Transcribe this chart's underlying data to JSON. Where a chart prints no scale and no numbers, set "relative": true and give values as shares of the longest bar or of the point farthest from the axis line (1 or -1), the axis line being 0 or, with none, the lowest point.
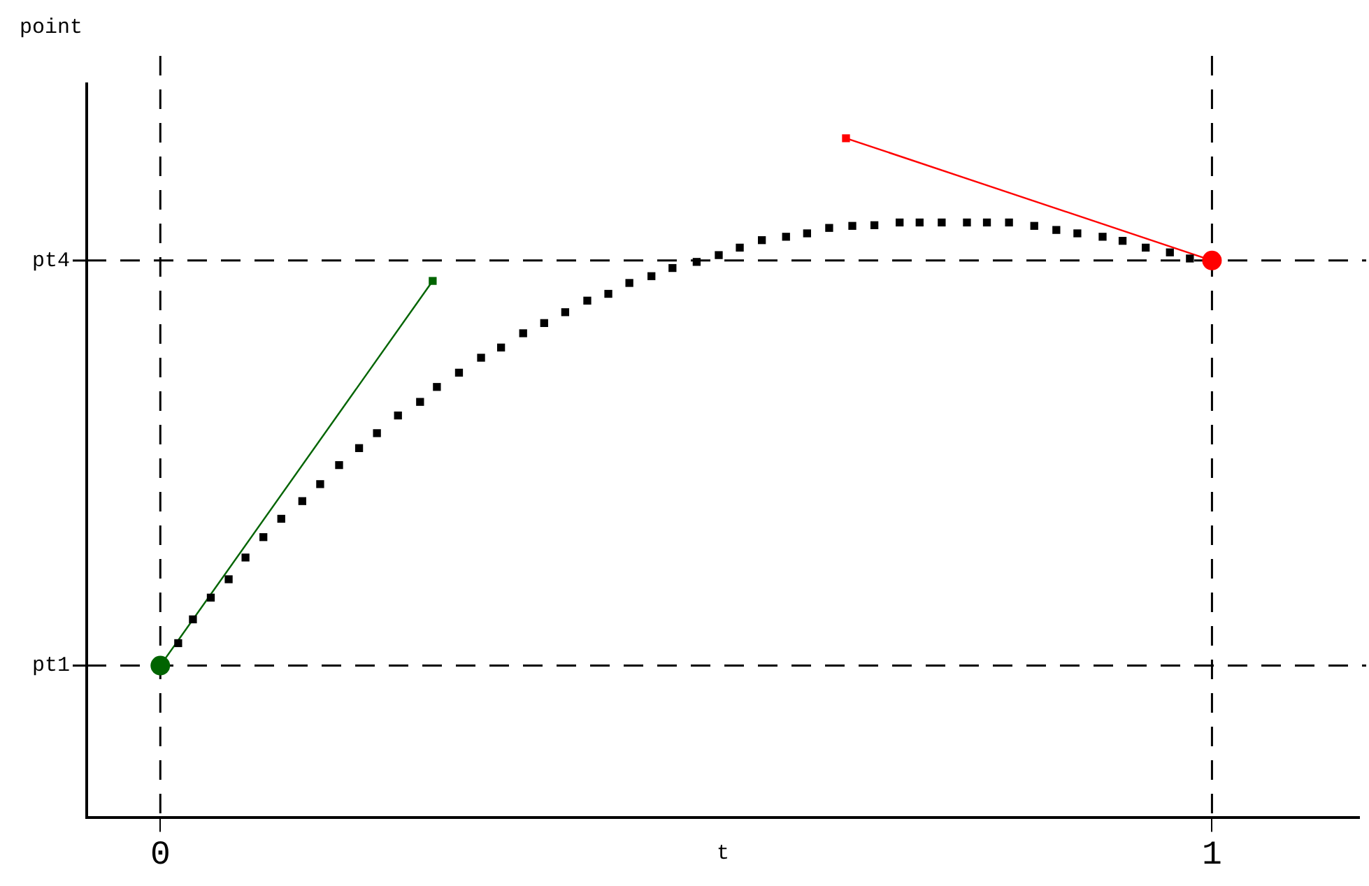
{
  "chart_data": {
    "type": "scatter",
    "xlabel": "t",
    "ylabel": "point",
    "relative": true,
    "xlim": [
      -0.07,
      1.14
    ],
    "xticks": [
      0,
      1
    ],
    "grid": false,
    "legend": false,
    "ref_lines": [
      {
        "axis": "x",
        "value": 0,
        "color": "#000000",
        "line_style": "dashed"
      },
      {
        "axis": "x",
        "value": 1,
        "color": "#000000",
        "line_style": "dashed"
      },
      {
        "axis": "y",
        "value": 0.224,
        "label": "pt1",
        "color": "#000000",
        "line_style": "dashed"
      },
      {
        "axis": "y",
        "value": 0.82,
        "label": "pt4",
        "color": "#000000",
        "line_style": "dashed"
      }
    ],
    "series": [
      {
        "type": "line",
        "marker": "none",
        "color": "#006400",
        "x": [
          0,
          0.259
        ],
        "values": [
          0.224,
          0.79
        ]
      },
      {
        "type": "line",
        "marker": "none",
        "color": "#ff0000",
        "x": [
          0.652,
          1
        ],
        "values": [
          1,
          0.82
        ]
      },
      {
        "marker": "square",
        "color": "#000000",
        "x": [
          0.017,
          0.031,
          0.048,
          0.065,
          0.081,
          0.098,
          0.115,
          0.135,
          0.152,
          0.17,
          0.189,
          0.206,
          0.226,
          0.247,
          0.263,
          0.284,
          0.305,
          0.324,
          0.345,
          0.365,
          0.385,
          0.406,
          0.426,
          0.446,
          0.467,
          0.487,
          0.51,
          0.531,
          0.551,
          0.572,
          0.595,
          0.615,
          0.636,
          0.658,
          0.679,
          0.703,
          0.722,
          0.743,
          0.767,
          0.786,
          0.807,
          0.831,
          0.852,
          0.872,
          0.896,
          0.915,
          0.937,
          0.96,
          0.979
        ],
        "values": [
          0.257,
          0.292,
          0.324,
          0.351,
          0.383,
          0.413,
          0.44,
          0.466,
          0.491,
          0.519,
          0.544,
          0.566,
          0.592,
          0.612,
          0.634,
          0.655,
          0.677,
          0.692,
          0.713,
          0.728,
          0.744,
          0.761,
          0.771,
          0.787,
          0.797,
          0.809,
          0.818,
          0.828,
          0.839,
          0.85,
          0.855,
          0.86,
          0.868,
          0.871,
          0.872,
          0.876,
          0.876,
          0.876,
          0.876,
          0.876,
          0.876,
          0.871,
          0.865,
          0.86,
          0.855,
          0.849,
          0.839,
          0.832,
          0.823
        ]
      },
      {
        "marker": "square",
        "color": "#006400",
        "x": [
          0.259
        ],
        "values": [
          0.79
        ]
      },
      {
        "marker": "square",
        "color": "#ff0000",
        "x": [
          0.652
        ],
        "values": [
          1
        ]
      },
      {
        "marker": "circle",
        "color": "#006400",
        "x": [
          0
        ],
        "values": [
          0.224
        ]
      },
      {
        "marker": "circle",
        "color": "#ff0000",
        "x": [
          1
        ],
        "values": [
          0.82
        ]
      }
    ]
  }
}
